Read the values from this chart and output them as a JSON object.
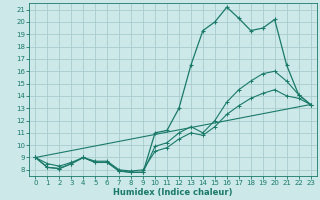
{
  "title": "",
  "xlabel": "Humidex (Indice chaleur)",
  "bg_color": "#cce8e8",
  "grid_color": "#aacccc",
  "line_color": "#1a7a6a",
  "spine_color": "#1a7a6a",
  "xlim": [
    -0.5,
    23.5
  ],
  "ylim": [
    7.5,
    21.5
  ],
  "yticks": [
    8,
    9,
    10,
    11,
    12,
    13,
    14,
    15,
    16,
    17,
    18,
    19,
    20,
    21
  ],
  "xticks": [
    0,
    1,
    2,
    3,
    4,
    5,
    6,
    7,
    8,
    9,
    10,
    11,
    12,
    13,
    14,
    15,
    16,
    17,
    18,
    19,
    20,
    21,
    22,
    23
  ],
  "series1_x": [
    0,
    1,
    2,
    3,
    4,
    5,
    6,
    7,
    8,
    9,
    10,
    11,
    12,
    13,
    14,
    15,
    16,
    17,
    18,
    19,
    20,
    21,
    22,
    23
  ],
  "series1_y": [
    9.0,
    8.2,
    8.1,
    8.5,
    9.0,
    8.6,
    8.6,
    7.9,
    7.8,
    7.8,
    11.0,
    11.2,
    13.0,
    16.5,
    19.3,
    20.0,
    21.2,
    20.3,
    19.3,
    19.5,
    20.2,
    16.5,
    14.1,
    13.3
  ],
  "series2_x": [
    0,
    1,
    2,
    3,
    4,
    5,
    6,
    7,
    8,
    9,
    10,
    11,
    12,
    13,
    14,
    15,
    16,
    17,
    18,
    19,
    20,
    21,
    22,
    23
  ],
  "series2_y": [
    9.0,
    8.2,
    8.1,
    8.5,
    9.0,
    8.6,
    8.6,
    7.9,
    7.8,
    7.8,
    9.9,
    10.2,
    11.0,
    11.5,
    11.0,
    12.0,
    13.5,
    14.5,
    15.2,
    15.8,
    16.0,
    15.2,
    14.1,
    13.3
  ],
  "series3_x": [
    0,
    1,
    2,
    3,
    4,
    5,
    6,
    7,
    8,
    9,
    10,
    11,
    12,
    13,
    14,
    15,
    16,
    17,
    18,
    19,
    20,
    21,
    22,
    23
  ],
  "series3_y": [
    9.0,
    8.5,
    8.3,
    8.6,
    9.0,
    8.7,
    8.7,
    8.0,
    7.9,
    8.0,
    9.5,
    9.8,
    10.5,
    11.0,
    10.8,
    11.5,
    12.5,
    13.2,
    13.8,
    14.2,
    14.5,
    14.0,
    13.8,
    13.3
  ],
  "series4_x": [
    0,
    23
  ],
  "series4_y": [
    9.0,
    13.3
  ],
  "xlabel_fontsize": 6,
  "tick_fontsize": 5
}
